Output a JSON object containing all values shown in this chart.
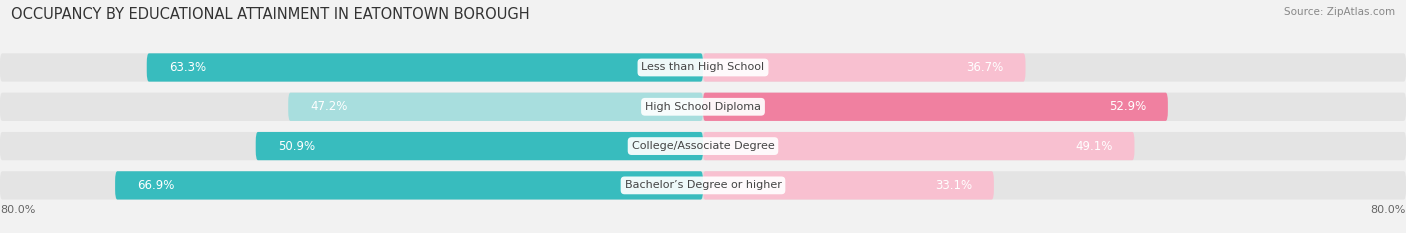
{
  "title": "OCCUPANCY BY EDUCATIONAL ATTAINMENT IN EATONTOWN BOROUGH",
  "source": "Source: ZipAtlas.com",
  "categories": [
    "Less than High School",
    "High School Diploma",
    "College/Associate Degree",
    "Bachelor’s Degree or higher"
  ],
  "owner_values": [
    63.3,
    47.2,
    50.9,
    66.9
  ],
  "renter_values": [
    36.7,
    52.9,
    49.1,
    33.1
  ],
  "owner_color": "#38bcbe",
  "owner_color_light": "#a8dede",
  "renter_color": "#f080a0",
  "renter_color_light": "#f8c0d0",
  "background_color": "#f2f2f2",
  "bar_bg_color": "#e4e4e4",
  "x_left_label": "80.0%",
  "x_right_label": "80.0%",
  "title_fontsize": 10.5,
  "source_fontsize": 7.5,
  "value_fontsize": 8.5,
  "cat_fontsize": 8.0,
  "legend_fontsize": 8.5
}
